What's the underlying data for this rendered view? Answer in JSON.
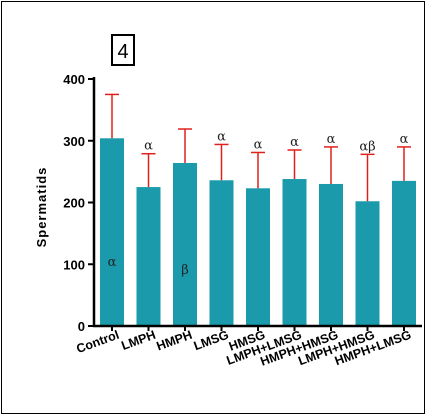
{
  "panel_label": "4",
  "chart_data": {
    "type": "bar",
    "title": "",
    "xlabel": "",
    "ylabel": "Spermatids",
    "ylim": [
      0,
      400
    ],
    "yticks": [
      "0",
      "100",
      "200",
      "300",
      "400"
    ],
    "categories": [
      "Control",
      "LMPH",
      "HMPH",
      "LMSG",
      "HMSG",
      "LMPH+LMSG",
      "HMPH+HMSG",
      "LMPH+HMSG",
      "HMPH+LMSG"
    ],
    "values": [
      304,
      225,
      264,
      236,
      223,
      238,
      230,
      202,
      235
    ],
    "errors": [
      71,
      54,
      55,
      58,
      58,
      47,
      60,
      76,
      55
    ],
    "annotations_above": [
      "",
      "α",
      "",
      "α",
      "α",
      "α",
      "α",
      "αβ",
      "α"
    ],
    "annotations_inside": [
      "α",
      "",
      "β",
      "",
      "",
      "",
      "",
      "",
      ""
    ],
    "bar_color": "#1a9aaa",
    "error_color": "#e0201c",
    "grid": false,
    "legend": "none"
  }
}
